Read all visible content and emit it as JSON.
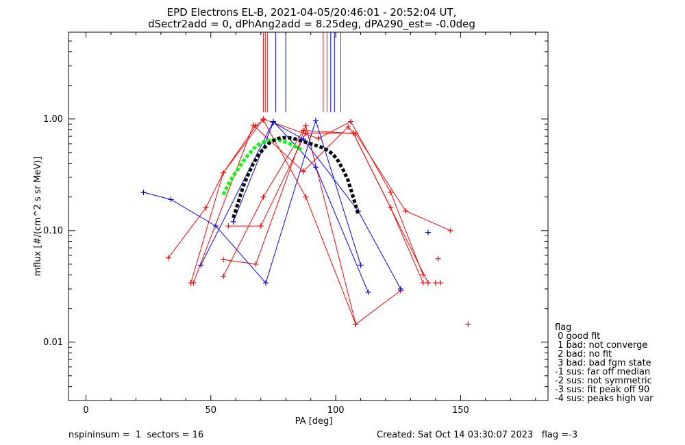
{
  "title_line1": "EPD Electrons EL-B, 2021-04-05/20:46:01 - 20:52:04 UT,",
  "title_line2": "dSectr2add = 0, dPhAng2add = 8.25deg, dPA290_est=  -0.0deg",
  "footer": {
    "left": "nspininsum =  1  sectors = 16",
    "right": "Created: Sat Oct 14 03:30:07 2023   flag =-3"
  },
  "legend": {
    "title": "flag",
    "items": [
      " 0 good fit",
      " 1 bad: not converge",
      " 2 bad: no fit",
      " 3 bad: bad fgm state",
      "-1 sus: far off median",
      "-2 sus: not symmetric",
      "-3 sus: fit peak off 90",
      "-4 sus: peaks high var"
    ]
  },
  "colors": {
    "red": "#ff0000",
    "blue": "#0000ff",
    "green": "#00ff00",
    "black": "#000000"
  },
  "chart_data": {
    "type": "line",
    "title": "EPD Electrons EL-B, 2021-04-05/20:46:01 - 20:52:04 UT, dSectr2add = 0, dPhAng2add = 8.25deg, dPA290_est=  -0.0deg",
    "xlabel": "PA [deg]",
    "ylabel": "mflux [#/(cm^2 s sr MeV)]",
    "xlim": [
      -7,
      185
    ],
    "ylim": [
      0.003,
      6.0
    ],
    "yscale": "log",
    "xticks": [
      0,
      50,
      100,
      150
    ],
    "xtick_labels": [
      "0",
      "50",
      "100",
      "150"
    ],
    "yticks": [
      0.01,
      0.1,
      1.0
    ],
    "ytick_labels": [
      "0.01",
      "0.10",
      "1.00"
    ],
    "series": [
      {
        "color": "red",
        "x": [
          33,
          48,
          55,
          68,
          71,
          88,
          108
        ],
        "y": [
          0.057,
          0.16,
          0.33,
          0.87,
          0.98,
          0.2,
          0.0145
        ]
      },
      {
        "color": "red",
        "x": [
          42,
          55,
          71,
          93,
          106,
          122,
          135
        ],
        "y": [
          0.034,
          0.33,
          1.0,
          0.67,
          0.95,
          0.22,
          0.04
        ]
      },
      {
        "color": "red",
        "x": [
          43,
          67,
          87,
          105,
          107,
          122,
          135
        ],
        "y": [
          0.034,
          0.88,
          0.34,
          0.85,
          0.75,
          0.16,
          0.034
        ]
      },
      {
        "color": "red",
        "x": [
          55,
          71,
          87,
          108,
          128,
          146
        ],
        "y": [
          0.039,
          0.2,
          0.79,
          0.74,
          0.15,
          0.1
        ]
      },
      {
        "color": "red",
        "x": [
          55,
          68,
          88,
          108,
          126
        ],
        "y": [
          0.055,
          0.05,
          0.87,
          0.0145,
          0.029
        ]
      },
      {
        "color": "red",
        "x": [
          57,
          70,
          88,
          107,
          137
        ],
        "y": [
          0.11,
          0.11,
          0.75,
          0.75,
          0.034
        ]
      },
      {
        "color": "blue",
        "x": [
          23,
          34,
          52,
          72,
          92,
          110
        ],
        "y": [
          0.22,
          0.19,
          0.11,
          0.034,
          0.97,
          0.049
        ]
      },
      {
        "color": "blue",
        "x": [
          46,
          75,
          92,
          113
        ],
        "y": [
          0.049,
          0.95,
          0.37,
          0.028
        ]
      },
      {
        "color": "blue",
        "x": [
          59,
          75,
          87,
          109,
          126
        ],
        "y": [
          0.12,
          0.93,
          0.66,
          0.15,
          0.03
        ]
      }
    ],
    "unconnected_points": [
      {
        "color": "red",
        "x": 140,
        "y": 0.034
      },
      {
        "color": "red",
        "x": 142,
        "y": 0.034
      },
      {
        "color": "red",
        "x": 141,
        "y": 0.056
      },
      {
        "color": "red",
        "x": 153,
        "y": 0.0145
      },
      {
        "color": "blue",
        "x": 137,
        "y": 0.096
      }
    ],
    "fit_curves": [
      {
        "color": "green",
        "x": [
          55,
          57,
          59,
          61,
          63,
          65,
          67,
          69,
          71,
          73,
          75,
          77,
          79,
          81,
          83,
          85,
          87
        ],
        "y": [
          0.21,
          0.26,
          0.31,
          0.36,
          0.42,
          0.48,
          0.54,
          0.59,
          0.62,
          0.64,
          0.65,
          0.65,
          0.63,
          0.61,
          0.58,
          0.55,
          0.52
        ]
      },
      {
        "color": "black",
        "x": [
          59,
          61,
          63,
          65,
          67,
          69,
          71,
          73,
          75,
          77,
          79,
          81,
          83,
          85,
          87,
          89,
          91,
          93,
          95,
          97,
          99,
          101,
          103,
          105,
          107,
          109
        ],
        "y": [
          0.13,
          0.18,
          0.25,
          0.32,
          0.4,
          0.47,
          0.54,
          0.6,
          0.64,
          0.67,
          0.68,
          0.68,
          0.67,
          0.65,
          0.63,
          0.61,
          0.59,
          0.57,
          0.55,
          0.52,
          0.48,
          0.42,
          0.35,
          0.28,
          0.2,
          0.14
        ]
      }
    ],
    "vertical_lines": [
      {
        "color": "red",
        "x": 71
      },
      {
        "color": "red",
        "x": 71.8
      },
      {
        "color": "red",
        "x": 72.6
      },
      {
        "color": "blue",
        "x": 76
      },
      {
        "color": "blue",
        "x": 80
      },
      {
        "color": "red",
        "x": 95
      },
      {
        "color": "red",
        "x": 96.5
      },
      {
        "color": "blue",
        "x": 98
      },
      {
        "color": "blue",
        "x": 99.5
      },
      {
        "color": "red",
        "x": 102
      }
    ]
  }
}
